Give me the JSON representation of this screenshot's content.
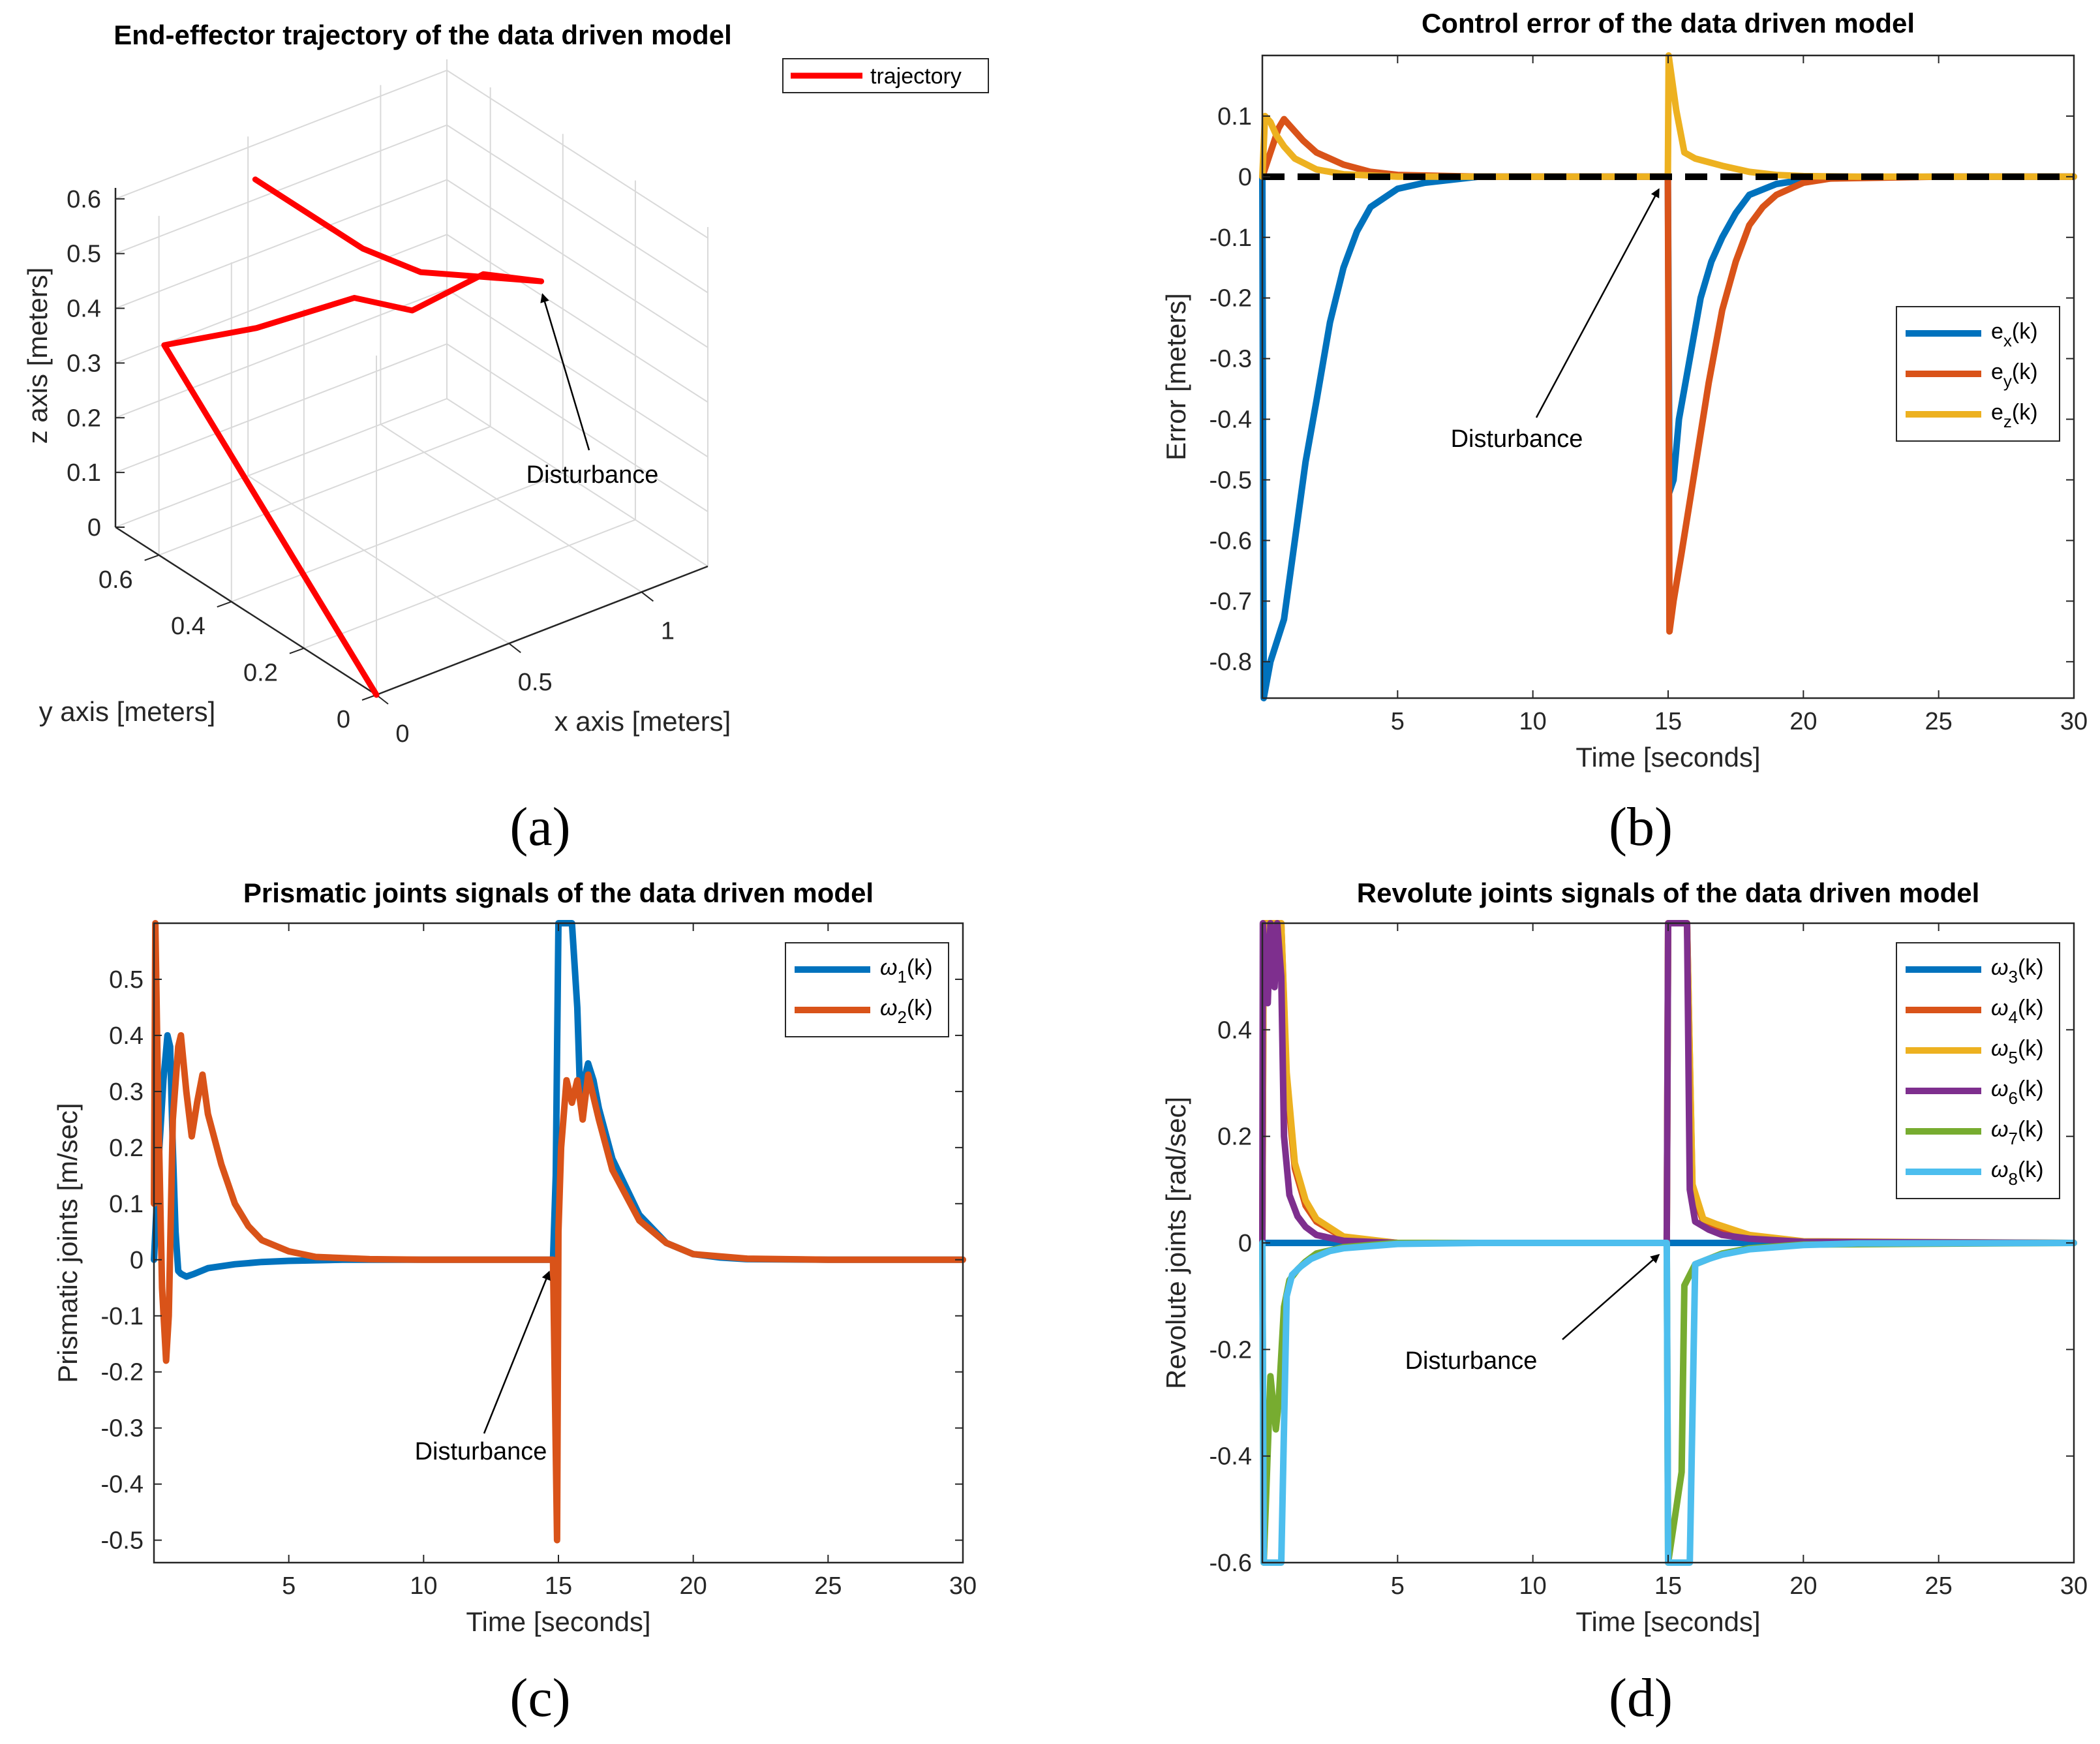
{
  "chart_data": [
    {
      "type": "line3d",
      "panel_label": "(a)",
      "title": "End-effector  trajectory of the data driven model",
      "xlabel": "x axis [meters]",
      "ylabel": "y axis [meters]",
      "zlabel": "z axis [meters]",
      "x_ticks": [
        "0",
        "0.5",
        "1"
      ],
      "y_ticks": [
        "0",
        "0.2",
        "0.4",
        "0.6"
      ],
      "z_ticks": [
        "0",
        "0.1",
        "0.2",
        "0.3",
        "0.4",
        "0.5",
        "0.6"
      ],
      "legend_position": "top-right",
      "series": [
        {
          "name": "trajectory",
          "color": "#ff0000",
          "points": [
            [
              0,
              0,
              0
            ],
            [
              0.02,
              0.6,
              0.38
            ],
            [
              0.3,
              0.55,
              0.38
            ],
            [
              0.6,
              0.5,
              0.4
            ],
            [
              0.75,
              0.45,
              0.37
            ],
            [
              0.95,
              0.4,
              0.42
            ],
            [
              1.1,
              0.35,
              0.4
            ],
            [
              0.85,
              0.5,
              0.4
            ],
            [
              0.7,
              0.55,
              0.45
            ],
            [
              0.5,
              0.7,
              0.55
            ]
          ]
        }
      ],
      "annotations": [
        {
          "text": "Disturbance",
          "target": [
            1.1,
            0.35,
            0.4
          ]
        }
      ],
      "grid": true
    },
    {
      "type": "line",
      "panel_label": "(b)",
      "title": "Control error of the data driven model",
      "xlabel": "Time [seconds]",
      "ylabel": "Error [meters]",
      "xlim": [
        0,
        30
      ],
      "ylim": [
        -0.86,
        0.2
      ],
      "x_ticks": [
        5,
        10,
        15,
        20,
        25,
        30
      ],
      "y_ticks": [
        0.1,
        0,
        -0.1,
        -0.2,
        -0.3,
        -0.4,
        -0.5,
        -0.6,
        -0.7,
        -0.8
      ],
      "legend_position": "right",
      "reference_line": {
        "y": 0,
        "style": "dashed",
        "color": "#000000"
      },
      "series": [
        {
          "name": "e",
          "sub": "x",
          "suffix": "(k)",
          "color": "#0072BD",
          "x": [
            0,
            0.05,
            0.3,
            0.8,
            1.2,
            1.6,
            2,
            2.5,
            3,
            3.5,
            4,
            5,
            6,
            8,
            10,
            14.99,
            15.05,
            15.2,
            15.4,
            15.8,
            16.2,
            16.6,
            17,
            17.5,
            18,
            19,
            20,
            22,
            25,
            30
          ],
          "y": [
            0,
            -0.86,
            -0.8,
            -0.73,
            -0.6,
            -0.47,
            -0.37,
            -0.24,
            -0.15,
            -0.09,
            -0.05,
            -0.02,
            -0.01,
            0,
            0,
            0,
            -0.52,
            -0.5,
            -0.4,
            -0.3,
            -0.2,
            -0.14,
            -0.1,
            -0.06,
            -0.03,
            -0.012,
            -0.005,
            -0.001,
            0,
            0
          ]
        },
        {
          "name": "e",
          "sub": "y",
          "suffix": "(k)",
          "color": "#D95319",
          "x": [
            0,
            0.3,
            0.6,
            0.8,
            1,
            1.5,
            2,
            3,
            4,
            5,
            8,
            14.99,
            15.05,
            15.2,
            15.5,
            16,
            16.5,
            17,
            17.5,
            18,
            18.5,
            19,
            20,
            21,
            25,
            30
          ],
          "y": [
            0,
            0.04,
            0.08,
            0.095,
            0.085,
            0.06,
            0.04,
            0.02,
            0.008,
            0.003,
            0,
            0,
            -0.75,
            -0.7,
            -0.62,
            -0.48,
            -0.34,
            -0.22,
            -0.14,
            -0.08,
            -0.05,
            -0.03,
            -0.01,
            -0.003,
            0,
            0
          ]
        },
        {
          "name": "e",
          "sub": "z",
          "suffix": "(k)",
          "color": "#EDB120",
          "x": [
            0,
            0.1,
            0.3,
            0.5,
            0.8,
            1.2,
            2,
            3,
            5,
            8,
            14.99,
            15.02,
            15.3,
            15.6,
            16,
            17,
            18,
            19,
            20,
            22,
            30
          ],
          "y": [
            0,
            0.1,
            0.09,
            0.07,
            0.05,
            0.03,
            0.012,
            0.004,
            0,
            0,
            0,
            0.2,
            0.11,
            0.04,
            0.03,
            0.018,
            0.008,
            0.003,
            0.001,
            0,
            0
          ]
        }
      ],
      "annotations": [
        {
          "text": "Disturbance",
          "target": [
            14.8,
            -0.01
          ]
        }
      ],
      "grid": false
    },
    {
      "type": "line",
      "panel_label": "(c)",
      "title": "Prismatic joints signals of the data driven model",
      "xlabel": "Time [seconds]",
      "ylabel": "Prismatic joints [m/sec]",
      "xlim": [
        0,
        30
      ],
      "ylim": [
        -0.54,
        0.6
      ],
      "x_ticks": [
        5,
        10,
        15,
        20,
        25,
        30
      ],
      "y_ticks": [
        0.5,
        0.4,
        0.3,
        0.2,
        0.1,
        0,
        -0.1,
        -0.2,
        -0.3,
        -0.4,
        -0.5
      ],
      "legend_position": "top-right",
      "series": [
        {
          "name": "ω",
          "sub": "1",
          "suffix": "(k)",
          "color": "#0072BD",
          "x": [
            0,
            0.2,
            0.35,
            0.5,
            0.6,
            0.7,
            0.8,
            0.9,
            1,
            1.2,
            1.5,
            2,
            3,
            4,
            5,
            7,
            10,
            14.8,
            14.9,
            15,
            15.05,
            15.5,
            15.7,
            15.8,
            15.9,
            16,
            16.1,
            16.3,
            16.5,
            17,
            18,
            19,
            20,
            21,
            22,
            25,
            30
          ],
          "y": [
            0,
            0.2,
            0.32,
            0.4,
            0.38,
            0.2,
            0.05,
            -0.02,
            -0.025,
            -0.03,
            -0.025,
            -0.015,
            -0.008,
            -0.004,
            -0.002,
            0,
            0,
            0,
            0.15,
            0.6,
            0.6,
            0.6,
            0.45,
            0.3,
            0.28,
            0.33,
            0.35,
            0.32,
            0.27,
            0.18,
            0.08,
            0.03,
            0.01,
            0.004,
            0.001,
            0,
            0
          ]
        },
        {
          "name": "ω",
          "sub": "2",
          "suffix": "(k)",
          "color": "#D95319",
          "x": [
            0,
            0.05,
            0.15,
            0.3,
            0.45,
            0.55,
            0.7,
            0.9,
            1,
            1.2,
            1.4,
            1.6,
            1.8,
            2,
            2.5,
            3,
            3.5,
            4,
            5,
            6,
            8,
            10,
            14.8,
            14.95,
            15,
            15.1,
            15.3,
            15.5,
            15.7,
            15.9,
            16.1,
            16.5,
            17,
            18,
            19,
            20,
            22,
            25,
            30
          ],
          "y": [
            0.1,
            0.6,
            0.3,
            -0.05,
            -0.18,
            -0.1,
            0.25,
            0.38,
            0.4,
            0.3,
            0.22,
            0.28,
            0.33,
            0.26,
            0.17,
            0.1,
            0.06,
            0.035,
            0.015,
            0.005,
            0.001,
            0,
            0,
            -0.5,
            0.05,
            0.2,
            0.32,
            0.28,
            0.32,
            0.25,
            0.33,
            0.25,
            0.16,
            0.07,
            0.03,
            0.01,
            0.002,
            0,
            0
          ]
        }
      ],
      "annotations": [
        {
          "text": "Disturbance",
          "target": [
            14.8,
            -0.01
          ]
        }
      ],
      "grid": false
    },
    {
      "type": "line",
      "panel_label": "(d)",
      "title": "Revolute joints signals of the data driven model",
      "xlabel": "Time [seconds]",
      "ylabel": "Revolute joints [rad/sec]",
      "xlim": [
        0,
        30
      ],
      "ylim": [
        -0.6,
        0.6
      ],
      "x_ticks": [
        5,
        10,
        15,
        20,
        25,
        30
      ],
      "y_ticks": [
        0.4,
        0.2,
        0,
        -0.2,
        -0.4,
        -0.6
      ],
      "legend_position": "top-right",
      "series": [
        {
          "name": "ω",
          "sub": "3",
          "suffix": "(k)",
          "color": "#0072BD",
          "x": [
            0,
            30
          ],
          "y": [
            0,
            0
          ]
        },
        {
          "name": "ω",
          "sub": "4",
          "suffix": "(k)",
          "color": "#D95319",
          "x": [
            0,
            0.05,
            0.7,
            0.9,
            1.2,
            1.6,
            2,
            3,
            5,
            14.95,
            15,
            15.7,
            15.9,
            16.3,
            16.8,
            18,
            20,
            30
          ],
          "y": [
            0,
            0.6,
            0.6,
            0.3,
            0.14,
            0.07,
            0.04,
            0.01,
            0,
            0,
            0.6,
            0.6,
            0.1,
            0.04,
            0.03,
            0.012,
            0.002,
            0
          ]
        },
        {
          "name": "ω",
          "sub": "5",
          "suffix": "(k)",
          "color": "#EDB120",
          "x": [
            0,
            0.05,
            0.7,
            0.9,
            1.2,
            1.6,
            2,
            3,
            5,
            14.95,
            15,
            15.7,
            15.9,
            16.3,
            16.8,
            18,
            20,
            30
          ],
          "y": [
            0,
            0.6,
            0.6,
            0.32,
            0.15,
            0.08,
            0.045,
            0.012,
            0,
            0,
            0.6,
            0.6,
            0.11,
            0.045,
            0.035,
            0.015,
            0.003,
            0
          ]
        },
        {
          "name": "ω",
          "sub": "6",
          "suffix": "(k)",
          "color": "#7E2F8E",
          "x": [
            0,
            0.02,
            0.2,
            0.3,
            0.45,
            0.55,
            0.7,
            0.8,
            1,
            1.3,
            1.6,
            2,
            3,
            5,
            14.95,
            15,
            15.7,
            15.8,
            16,
            16.5,
            17,
            18,
            20,
            30
          ],
          "y": [
            0,
            0.6,
            0.45,
            0.6,
            0.48,
            0.6,
            0.5,
            0.2,
            0.09,
            0.05,
            0.03,
            0.015,
            0.004,
            0,
            0,
            0.6,
            0.6,
            0.1,
            0.04,
            0.025,
            0.015,
            0.008,
            0.002,
            0
          ]
        },
        {
          "name": "ω",
          "sub": "7",
          "suffix": "(k)",
          "color": "#77AC30",
          "x": [
            0,
            0.05,
            0.3,
            0.5,
            0.6,
            0.8,
            1,
            1.3,
            1.6,
            2,
            3,
            5,
            14.95,
            15,
            15.5,
            15.6,
            16,
            17,
            18,
            20,
            30
          ],
          "y": [
            0,
            -0.6,
            -0.25,
            -0.35,
            -0.3,
            -0.12,
            -0.07,
            -0.05,
            -0.035,
            -0.02,
            -0.008,
            0,
            0,
            -0.6,
            -0.43,
            -0.08,
            -0.04,
            -0.02,
            -0.01,
            -0.003,
            0
          ]
        },
        {
          "name": "ω",
          "sub": "8",
          "suffix": "(k)",
          "color": "#4DBEEE",
          "x": [
            0,
            0.05,
            0.7,
            0.9,
            1.1,
            1.4,
            1.8,
            2.5,
            3,
            5,
            8,
            14.95,
            15,
            15.8,
            16,
            16.5,
            17,
            18,
            20,
            22,
            30
          ],
          "y": [
            0,
            -0.6,
            -0.6,
            -0.1,
            -0.06,
            -0.045,
            -0.03,
            -0.015,
            -0.01,
            -0.002,
            0,
            0,
            -0.6,
            -0.6,
            -0.04,
            -0.03,
            -0.022,
            -0.012,
            -0.004,
            -0.001,
            0
          ]
        }
      ],
      "annotations": [
        {
          "text": "Disturbance",
          "target": [
            14.8,
            -0.01
          ]
        }
      ],
      "grid": false
    }
  ]
}
